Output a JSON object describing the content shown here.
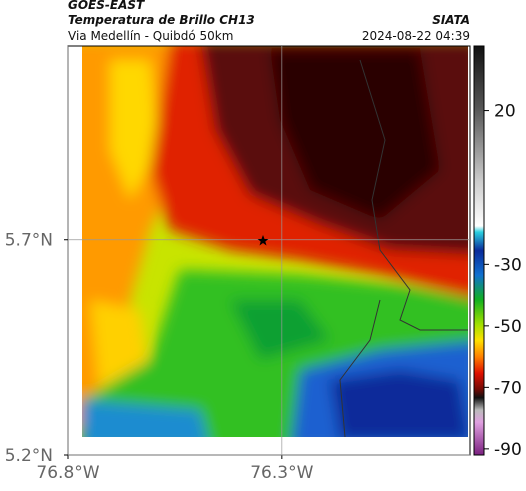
{
  "header": {
    "title": "GOES-EAST",
    "subtitle": "Temperatura de Brillo CH13",
    "region": "Via Medellín - Quibdó 50km",
    "source": "SIATA",
    "datetime": "2024-08-22 04:39"
  },
  "map": {
    "xlim": [
      -76.8,
      -75.86
    ],
    "ylim": [
      5.2,
      6.15
    ],
    "xticks": [
      {
        "value": -76.8,
        "label": "76.8°W"
      },
      {
        "value": -76.3,
        "label": "76.3°W"
      }
    ],
    "yticks": [
      {
        "value": 5.7,
        "label": "5.7°N"
      },
      {
        "value": 5.2,
        "label": "5.2°N"
      }
    ],
    "colorbar": {
      "lim": [
        -92,
        41
      ],
      "ticks": [
        20,
        -30,
        -50,
        -70,
        -90
      ]
    }
  }
}
